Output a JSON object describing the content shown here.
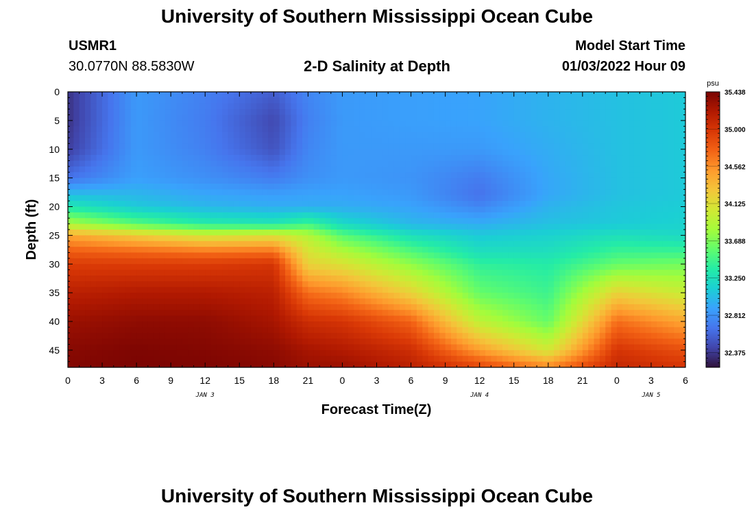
{
  "header": {
    "title": "University of Southern Mississippi Ocean Cube",
    "station_id": "USMR1",
    "coordinates": "30.0770N  88.5830W",
    "plot_title": "2-D Salinity at Depth",
    "model_start_label": "Model Start Time",
    "model_start_value": "01/03/2022 Hour 09"
  },
  "footer": {
    "title": "University of Southern Mississippi Ocean Cube"
  },
  "chart_data": {
    "type": "heatmap",
    "title": "2-D Salinity at Depth",
    "xlabel": "Forecast Time(Z)",
    "ylabel": "Depth (ft)",
    "x_unit": "forecast hours from 01/03 00Z",
    "xlim": [
      0,
      54
    ],
    "ylim": [
      0,
      48
    ],
    "y_inverted": true,
    "x_tick_values": [
      0,
      3,
      6,
      9,
      12,
      15,
      18,
      21,
      24,
      27,
      30,
      33,
      36,
      39,
      42,
      45,
      48,
      51,
      54
    ],
    "x_tick_labels": [
      "0",
      "3",
      "6",
      "9",
      "12",
      "15",
      "18",
      "21",
      "0",
      "3",
      "6",
      "9",
      "12",
      "15",
      "18",
      "21",
      "0",
      "3",
      "6"
    ],
    "y_ticks": [
      0,
      5,
      10,
      15,
      20,
      25,
      30,
      35,
      40,
      45
    ],
    "day_labels": [
      {
        "text": "JAN 3",
        "x": 12
      },
      {
        "text": "JAN 4",
        "x": 36
      },
      {
        "text": "JAN 5",
        "x": 51
      }
    ],
    "colorbar": {
      "unit": "psu",
      "vmin": 32.2,
      "vmax": 35.438,
      "ticks": [
        32.375,
        32.812,
        33.25,
        33.688,
        34.125,
        34.562,
        35.0,
        35.438
      ],
      "tick_labels": [
        "32.375",
        "32.812",
        "33.250",
        "33.688",
        "34.125",
        "34.562",
        "35.000",
        "35.438"
      ],
      "colors": [
        "#30123b",
        "#4145ab",
        "#4675ed",
        "#39a2fc",
        "#1bcfd4",
        "#24eca6",
        "#61fc6c",
        "#a4fc3b",
        "#d1e834",
        "#f3c63a",
        "#fe9b2d",
        "#f36315",
        "#d93806",
        "#b11901",
        "#7a0402"
      ]
    },
    "approx_grid": {
      "x": [
        0,
        6,
        12,
        18,
        21,
        24,
        30,
        36,
        42,
        48,
        54
      ],
      "y": [
        0,
        5,
        10,
        15,
        18,
        20,
        23,
        25,
        28,
        30,
        35,
        40,
        45,
        48
      ],
      "values": [
        [
          32.35,
          32.85,
          32.72,
          32.55,
          32.75,
          32.85,
          32.88,
          32.9,
          32.98,
          33.05,
          33.1
        ],
        [
          32.35,
          32.85,
          32.7,
          32.45,
          32.72,
          32.85,
          32.88,
          32.9,
          32.98,
          33.05,
          33.1
        ],
        [
          32.4,
          32.85,
          32.72,
          32.5,
          32.75,
          32.85,
          32.85,
          32.85,
          32.95,
          33.05,
          33.1
        ],
        [
          32.65,
          32.88,
          32.8,
          32.7,
          32.8,
          32.85,
          32.82,
          32.7,
          32.92,
          33.05,
          33.1
        ],
        [
          33.05,
          33.0,
          32.92,
          32.88,
          32.9,
          32.9,
          32.85,
          32.65,
          32.92,
          33.05,
          33.1
        ],
        [
          33.3,
          33.1,
          33.0,
          32.95,
          32.95,
          32.95,
          32.9,
          32.75,
          32.98,
          33.08,
          33.12
        ],
        [
          33.85,
          33.55,
          33.35,
          33.3,
          33.45,
          33.2,
          33.0,
          32.95,
          33.05,
          33.1,
          33.15
        ],
        [
          34.45,
          34.25,
          34.05,
          34.1,
          33.9,
          33.55,
          33.25,
          33.1,
          33.15,
          33.25,
          33.2
        ],
        [
          34.8,
          34.75,
          34.7,
          34.72,
          34.1,
          33.9,
          33.55,
          33.25,
          33.25,
          33.45,
          33.45
        ],
        [
          34.95,
          34.95,
          34.95,
          35.0,
          34.2,
          34.1,
          33.75,
          33.4,
          33.35,
          33.6,
          33.65
        ],
        [
          35.15,
          35.2,
          35.2,
          35.15,
          34.7,
          34.6,
          34.2,
          33.6,
          33.45,
          34.2,
          34.0
        ],
        [
          35.3,
          35.35,
          35.35,
          35.25,
          35.05,
          35.0,
          34.75,
          33.95,
          33.6,
          34.7,
          34.45
        ],
        [
          35.38,
          35.42,
          35.4,
          35.35,
          35.25,
          35.2,
          35.05,
          34.5,
          34.05,
          35.0,
          34.85
        ],
        [
          35.4,
          35.43,
          35.42,
          35.38,
          35.3,
          35.3,
          35.15,
          34.9,
          34.6,
          35.1,
          35.0
        ]
      ]
    }
  }
}
